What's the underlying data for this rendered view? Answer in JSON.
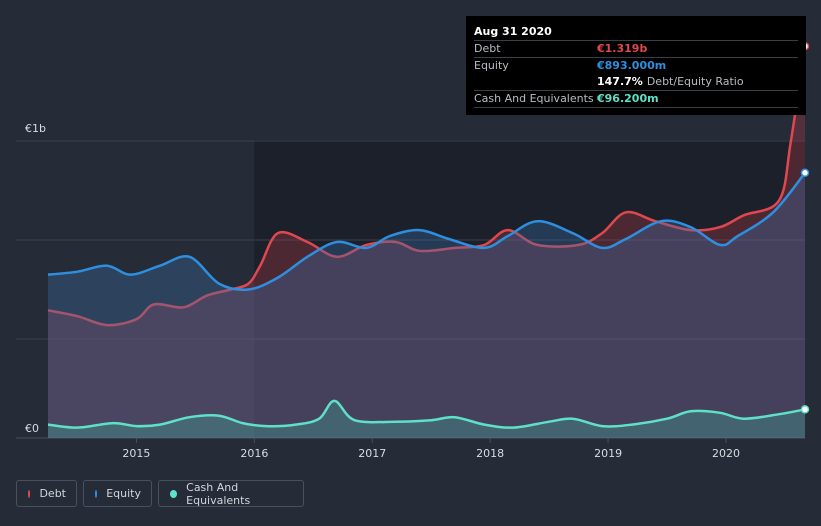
{
  "tooltip": {
    "date": "Aug 31 2020",
    "debt_label": "Debt",
    "debt_value": "€1.319b",
    "equity_label": "Equity",
    "equity_value": "€893.000m",
    "ratio_value": "147.7%",
    "ratio_label": "Debt/Equity Ratio",
    "cash_label": "Cash And Equivalents",
    "cash_value": "€96.200m"
  },
  "legend": {
    "debt": "Debt",
    "equity": "Equity",
    "cash": "Cash And Equivalents"
  },
  "colors": {
    "debt": "#e0484f",
    "equity": "#2e8fe0",
    "cash": "#5fe0c8",
    "background": "#252b37",
    "highlight": "#1b202a"
  },
  "chart_data": {
    "type": "area",
    "title": "",
    "xlabel": "",
    "ylabel": "",
    "x_range": [
      2014.25,
      2020.67
    ],
    "ylim": [
      0,
      1.35
    ],
    "y_ticks": [
      {
        "value": 0,
        "label": "€0"
      },
      {
        "value": 1.0,
        "label": "€1b"
      }
    ],
    "x_ticks": [
      {
        "value": 2015,
        "label": "2015"
      },
      {
        "value": 2016,
        "label": "2016"
      },
      {
        "value": 2017,
        "label": "2017"
      },
      {
        "value": 2018,
        "label": "2018"
      },
      {
        "value": 2019,
        "label": "2019"
      },
      {
        "value": 2020,
        "label": "2020"
      }
    ],
    "highlight_from": 2016.0,
    "series": [
      {
        "name": "Debt",
        "unit": "€b",
        "x": [
          2014.25,
          2014.5,
          2014.75,
          2015.0,
          2015.15,
          2015.4,
          2015.6,
          2015.8,
          2015.95,
          2016.05,
          2016.2,
          2016.45,
          2016.7,
          2016.95,
          2017.2,
          2017.4,
          2017.7,
          2017.95,
          2018.15,
          2018.4,
          2018.75,
          2018.95,
          2019.15,
          2019.4,
          2019.7,
          2019.95,
          2020.15,
          2020.45,
          2020.55,
          2020.67
        ],
        "values": [
          0.43,
          0.41,
          0.38,
          0.4,
          0.45,
          0.44,
          0.48,
          0.5,
          0.52,
          0.58,
          0.69,
          0.66,
          0.61,
          0.65,
          0.66,
          0.63,
          0.64,
          0.65,
          0.7,
          0.65,
          0.65,
          0.69,
          0.76,
          0.73,
          0.7,
          0.71,
          0.75,
          0.8,
          1.0,
          1.319
        ]
      },
      {
        "name": "Equity",
        "unit": "€b",
        "x": [
          2014.25,
          2014.5,
          2014.75,
          2014.95,
          2015.2,
          2015.45,
          2015.7,
          2015.95,
          2016.2,
          2016.45,
          2016.7,
          2016.95,
          2017.15,
          2017.4,
          2017.65,
          2017.95,
          2018.15,
          2018.4,
          2018.7,
          2018.95,
          2019.15,
          2019.45,
          2019.7,
          2019.95,
          2020.1,
          2020.4,
          2020.67
        ],
        "values": [
          0.55,
          0.56,
          0.58,
          0.55,
          0.58,
          0.61,
          0.52,
          0.5,
          0.54,
          0.61,
          0.66,
          0.64,
          0.68,
          0.7,
          0.67,
          0.64,
          0.68,
          0.73,
          0.69,
          0.64,
          0.67,
          0.73,
          0.71,
          0.65,
          0.68,
          0.76,
          0.893
        ]
      },
      {
        "name": "Cash And Equivalents",
        "unit": "€b",
        "x": [
          2014.25,
          2014.5,
          2014.8,
          2015.0,
          2015.2,
          2015.45,
          2015.7,
          2015.9,
          2016.1,
          2016.35,
          2016.55,
          2016.68,
          2016.85,
          2017.2,
          2017.5,
          2017.7,
          2017.95,
          2018.2,
          2018.5,
          2018.7,
          2018.95,
          2019.2,
          2019.5,
          2019.7,
          2019.95,
          2020.15,
          2020.45,
          2020.67
        ],
        "values": [
          0.045,
          0.035,
          0.05,
          0.04,
          0.045,
          0.07,
          0.075,
          0.05,
          0.04,
          0.045,
          0.065,
          0.125,
          0.06,
          0.055,
          0.06,
          0.07,
          0.045,
          0.035,
          0.055,
          0.065,
          0.04,
          0.045,
          0.065,
          0.09,
          0.085,
          0.065,
          0.08,
          0.0962
        ]
      }
    ]
  }
}
